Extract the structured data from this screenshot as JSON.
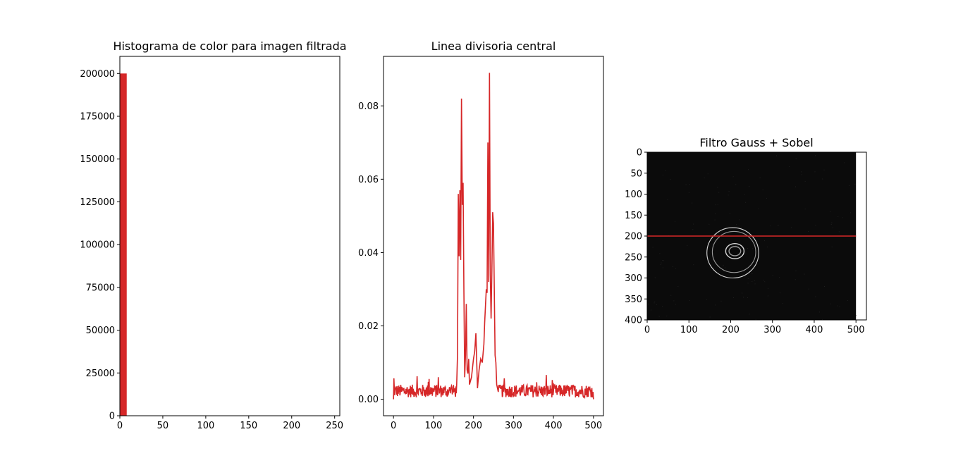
{
  "chart_data": [
    {
      "type": "bar",
      "title": "Histograma de color para imagen filtrada",
      "xlabel": "",
      "ylabel": "",
      "xlim": [
        0,
        256
      ],
      "ylim": [
        0,
        210000
      ],
      "xticks": [
        0,
        50,
        100,
        150,
        200,
        250
      ],
      "yticks": [
        0,
        25000,
        50000,
        75000,
        100000,
        125000,
        150000,
        175000,
        200000
      ],
      "bins": [
        {
          "x0": 0,
          "x1": 8,
          "value": 200000
        }
      ],
      "color": "#d62728",
      "grid": false
    },
    {
      "type": "line",
      "title": "Linea divisoria central",
      "xlabel": "",
      "ylabel": "",
      "xlim": [
        -25,
        525
      ],
      "ylim": [
        -0.0045,
        0.0935
      ],
      "xticks": [
        0,
        100,
        200,
        300,
        400,
        500
      ],
      "yticks": [
        0.0,
        0.02,
        0.04,
        0.06,
        0.08
      ],
      "ytick_labels": [
        "0.00",
        "0.02",
        "0.04",
        "0.06",
        "0.08"
      ],
      "x_max": 500,
      "keypoints": [
        [
          0,
          0.002
        ],
        [
          150,
          0.002
        ],
        [
          158,
          0.004
        ],
        [
          160,
          0.012
        ],
        [
          162,
          0.056
        ],
        [
          164,
          0.039
        ],
        [
          166,
          0.057
        ],
        [
          168,
          0.038
        ],
        [
          170,
          0.082
        ],
        [
          172,
          0.053
        ],
        [
          174,
          0.059
        ],
        [
          176,
          0.03
        ],
        [
          178,
          0.006
        ],
        [
          180,
          0.012
        ],
        [
          182,
          0.026
        ],
        [
          184,
          0.008
        ],
        [
          186,
          0.007
        ],
        [
          188,
          0.011
        ],
        [
          190,
          0.004
        ],
        [
          195,
          0.006
        ],
        [
          200,
          0.011
        ],
        [
          203,
          0.013
        ],
        [
          206,
          0.018
        ],
        [
          210,
          0.003
        ],
        [
          214,
          0.008
        ],
        [
          218,
          0.011
        ],
        [
          222,
          0.01
        ],
        [
          226,
          0.015
        ],
        [
          228,
          0.021
        ],
        [
          232,
          0.03
        ],
        [
          234,
          0.029
        ],
        [
          236,
          0.07
        ],
        [
          238,
          0.032
        ],
        [
          240,
          0.089
        ],
        [
          242,
          0.034
        ],
        [
          244,
          0.022
        ],
        [
          246,
          0.035
        ],
        [
          248,
          0.051
        ],
        [
          250,
          0.048
        ],
        [
          252,
          0.03
        ],
        [
          254,
          0.012
        ],
        [
          256,
          0.01
        ],
        [
          258,
          0.004
        ],
        [
          262,
          0.002
        ],
        [
          500,
          0.002
        ]
      ],
      "color": "#d62728",
      "grid": false
    },
    {
      "type": "image",
      "title": "Filtro Gauss + Sobel",
      "xlabel": "",
      "ylabel": "",
      "xlim": [
        0,
        525
      ],
      "ylim": [
        400,
        0
      ],
      "xticks": [
        0,
        100,
        200,
        300,
        400,
        500
      ],
      "yticks": [
        0,
        50,
        100,
        150,
        200,
        250,
        300,
        350,
        400
      ],
      "image_width": 500,
      "image_height": 400,
      "divider_line_y": 200,
      "divider_color": "#d62728",
      "rings": [
        {
          "cx": 205,
          "cy": 240,
          "rx": 62,
          "ry": 60
        },
        {
          "cx": 208,
          "cy": 238,
          "rx": 52,
          "ry": 49
        },
        {
          "cx": 210,
          "cy": 236,
          "rx": 22,
          "ry": 18
        },
        {
          "cx": 210,
          "cy": 236,
          "rx": 14,
          "ry": 11
        }
      ],
      "grid": false
    }
  ]
}
